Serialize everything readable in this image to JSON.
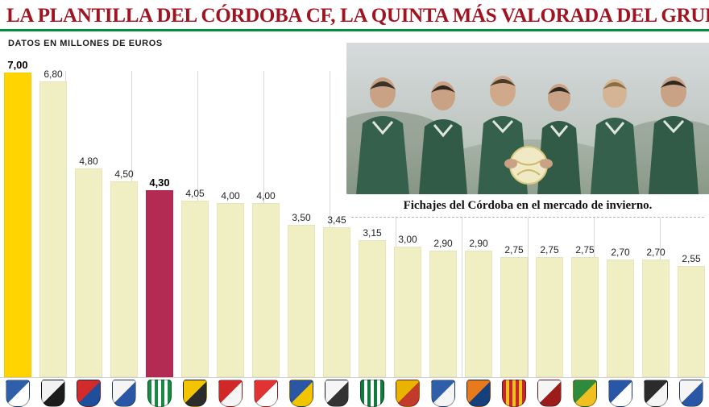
{
  "header": {
    "title": "LA PLANTILLA DEL CÓRDOBA CF, LA QUINTA MÁS VALORADA DEL GRUPO IV",
    "subtitle": "DATOS EN MILLONES DE EUROS",
    "title_color": "#a01320",
    "rule_color": "#00913f"
  },
  "photo": {
    "caption": "Fichajes del Córdoba en el mercado de invierno."
  },
  "chart_data": {
    "type": "bar",
    "title": "LA PLANTILLA DEL CÓRDOBA CF, LA QUINTA MÁS VALORADA DEL GRUPO IV",
    "subtitle": "DATOS EN MILLONES DE EUROS",
    "ylabel": "Millones de euros",
    "ylim": [
      0,
      7.2
    ],
    "grid": "vertical-lines",
    "legend": "none",
    "x_axis_note": "Categories are club crests (logo images, names not printed)",
    "values": [
      7.0,
      6.8,
      4.8,
      4.5,
      4.3,
      4.05,
      4.0,
      4.0,
      3.5,
      3.45,
      3.15,
      3.0,
      2.9,
      2.9,
      2.75,
      2.75,
      2.75,
      2.7,
      2.7,
      2.55
    ],
    "value_labels": [
      "7,00",
      "6,80",
      "4,80",
      "4,50",
      "4,30",
      "4,05",
      "4,00",
      "4,00",
      "3,50",
      "3,45",
      "3,15",
      "3,00",
      "2,90",
      "2,90",
      "2,75",
      "2,75",
      "2,75",
      "2,70",
      "2,70",
      "2,55"
    ],
    "bar_color_default": "#f0eec3",
    "highlights": [
      {
        "index": 0,
        "color": "#ffd400",
        "label": "7,00",
        "meaning": "equipo más valorado"
      },
      {
        "index": 4,
        "color": "#b32a52",
        "label": "4,30",
        "meaning": "Córdoba CF (quinto)"
      }
    ]
  },
  "logos": [
    {
      "primary": "#2f5fa8",
      "secondary": "#ffffff",
      "stripes": false
    },
    {
      "primary": "#f2f2f2",
      "secondary": "#1c1c1c",
      "stripes": false
    },
    {
      "primary": "#d22b2b",
      "secondary": "#1f4e9c",
      "stripes": false
    },
    {
      "primary": "#f5f5f5",
      "secondary": "#2a57a5",
      "stripes": false
    },
    {
      "primary": "#168a43",
      "secondary": "#ffffff",
      "stripes": true
    },
    {
      "primary": "#f2c500",
      "secondary": "#2b2b2b",
      "stripes": false
    },
    {
      "primary": "#d02828",
      "secondary": "#f5f5f5",
      "stripes": false
    },
    {
      "primary": "#e03434",
      "secondary": "#ffffff",
      "stripes": false
    },
    {
      "primary": "#2a57a5",
      "secondary": "#f2c500",
      "stripes": false
    },
    {
      "primary": "#f5f5f5",
      "secondary": "#333333",
      "stripes": false
    },
    {
      "primary": "#117a3d",
      "secondary": "#ffffff",
      "stripes": true
    },
    {
      "primary": "#e8b400",
      "secondary": "#c43a2a",
      "stripes": false
    },
    {
      "primary": "#2f5fa8",
      "secondary": "#f5f5f5",
      "stripes": false
    },
    {
      "primary": "#e87a1e",
      "secondary": "#16407c",
      "stripes": false
    },
    {
      "primary": "#c62828",
      "secondary": "#f0c020",
      "stripes": true
    },
    {
      "primary": "#f5f5f5",
      "secondary": "#9c1b1b",
      "stripes": false
    },
    {
      "primary": "#2e8b3c",
      "secondary": "#f0c020",
      "stripes": false
    },
    {
      "primary": "#2a57a5",
      "secondary": "#ffffff",
      "stripes": false
    },
    {
      "primary": "#2b2b2b",
      "secondary": "#f5f5f5",
      "stripes": false
    },
    {
      "primary": "#f5f5f5",
      "secondary": "#2a57a5",
      "stripes": false
    }
  ]
}
